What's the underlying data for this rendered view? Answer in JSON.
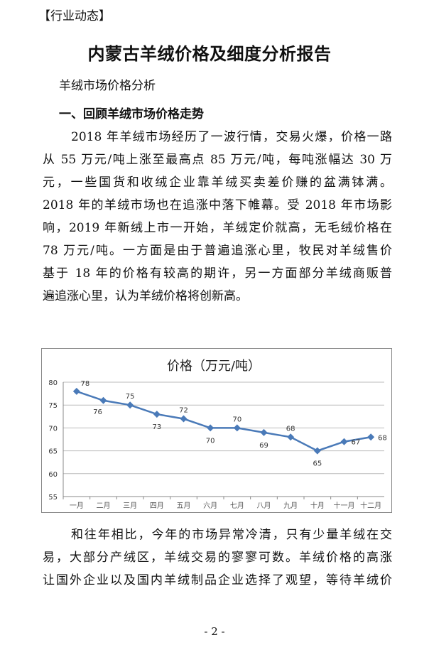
{
  "header": {
    "tag": "【行业动态】",
    "title": "内蒙古羊绒价格及细度分析报告",
    "subtitle": "羊绒市场价格分析",
    "section": "一、回顾羊绒市场价格走势"
  },
  "paragraph1": [
    "2018 年羊绒市场经历了一波行情，交易火爆，价格一路",
    "从 55 万元/吨上涨至最高点 85 万元/吨，每吨涨幅达 30 万",
    "元，一些国货和收绒企业靠羊绒买卖差价赚的盆满钵满。",
    "2018 年的羊绒市场也在追涨中落下帷幕。受 2018 年市场影",
    "响，2019 年新绒上市一开始，羊绒定价就高，无毛绒价格在",
    "78 万元/吨。一方面是由于普遍追涨心里，牧民对羊绒售价",
    "基于 18 年的价格有较高的期许，另一方面部分羊绒商贩普",
    "遍追涨心里，认为羊绒价格将创新高。"
  ],
  "paragraph2": [
    "和往年相比，今年的市场异常冷清，只有少量羊绒在交",
    "易，大部分产绒区，羊绒交易的寥寥可数。羊绒价格的高涨",
    "让国外企业以及国内羊绒制品企业选择了观望，等待羊绒价"
  ],
  "page_number": "- 2 -",
  "chart_data": {
    "type": "line",
    "title": "价格（万元/吨）",
    "categories": [
      "一月",
      "二月",
      "三月",
      "四月",
      "五月",
      "六月",
      "七月",
      "八月",
      "九月",
      "十月",
      "十一月",
      "十二月"
    ],
    "values": [
      78,
      76,
      75,
      73,
      72,
      70,
      70,
      69,
      68,
      65,
      67,
      68
    ],
    "ylim": [
      55,
      80
    ],
    "yticks": [
      55,
      60,
      65,
      70,
      75,
      80
    ],
    "grid": true,
    "legend": "none",
    "marker": "diamond",
    "line_color": "#4a7ab8",
    "data_labels": true
  }
}
